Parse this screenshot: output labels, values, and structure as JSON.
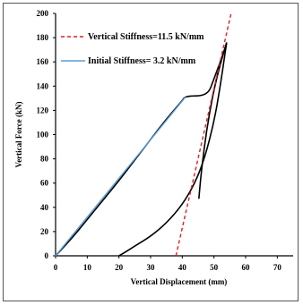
{
  "chart_data": {
    "type": "line",
    "title": "",
    "xlabel": "Vertical Displacement  (mm)",
    "ylabel": "Vertical Force (kN)",
    "xlim": [
      0,
      75
    ],
    "ylim": [
      0,
      200
    ],
    "xticks": [
      0,
      10,
      20,
      30,
      40,
      50,
      60,
      70
    ],
    "yticks": [
      0,
      20,
      40,
      60,
      80,
      100,
      120,
      140,
      160,
      180,
      200
    ],
    "xtick_labels": [
      "0",
      "10",
      "20",
      "30",
      "40",
      "50",
      "60",
      "70"
    ],
    "ytick_labels": [
      "0",
      "20",
      "40",
      "60",
      "80",
      "100",
      "120",
      "140",
      "160",
      "180",
      "200"
    ],
    "grid": false,
    "legend_position": "top-left",
    "series": [
      {
        "name": "Vertical Stiffness=11.5 kN/mm",
        "style": "dashed",
        "color": "#e02020",
        "x": [
          38,
          55.5
        ],
        "y": [
          0,
          201
        ]
      },
      {
        "name": "Initial Stiffness= 3.2 kN/mm",
        "style": "solid",
        "color": "#5b9bd5",
        "x": [
          0,
          41
        ],
        "y": [
          0,
          131
        ]
      },
      {
        "name": "",
        "style": "solid",
        "color": "#000000",
        "x": [
          0,
          5,
          10,
          15,
          20,
          25,
          30,
          35,
          40,
          41,
          48,
          50,
          52,
          54
        ],
        "y": [
          0,
          14,
          30,
          46,
          62,
          79,
          96,
          113,
          128,
          132,
          132,
          146,
          160,
          175
        ]
      },
      {
        "name": "",
        "style": "solid",
        "color": "#000000",
        "x": [
          20,
          22,
          25,
          30,
          35,
          40,
          44,
          47,
          50,
          52,
          54
        ],
        "y": [
          0,
          3,
          8,
          16,
          27,
          42,
          60,
          80,
          110,
          140,
          176
        ]
      },
      {
        "name": "",
        "style": "solid",
        "color": "#000000",
        "x": [
          54,
          51,
          48,
          46,
          45,
          46,
          48,
          51,
          54
        ],
        "y": [
          176,
          150,
          110,
          70,
          40,
          70,
          110,
          150,
          176
        ]
      }
    ]
  },
  "colors": {
    "frame": "#555555",
    "axis": "#000000"
  }
}
